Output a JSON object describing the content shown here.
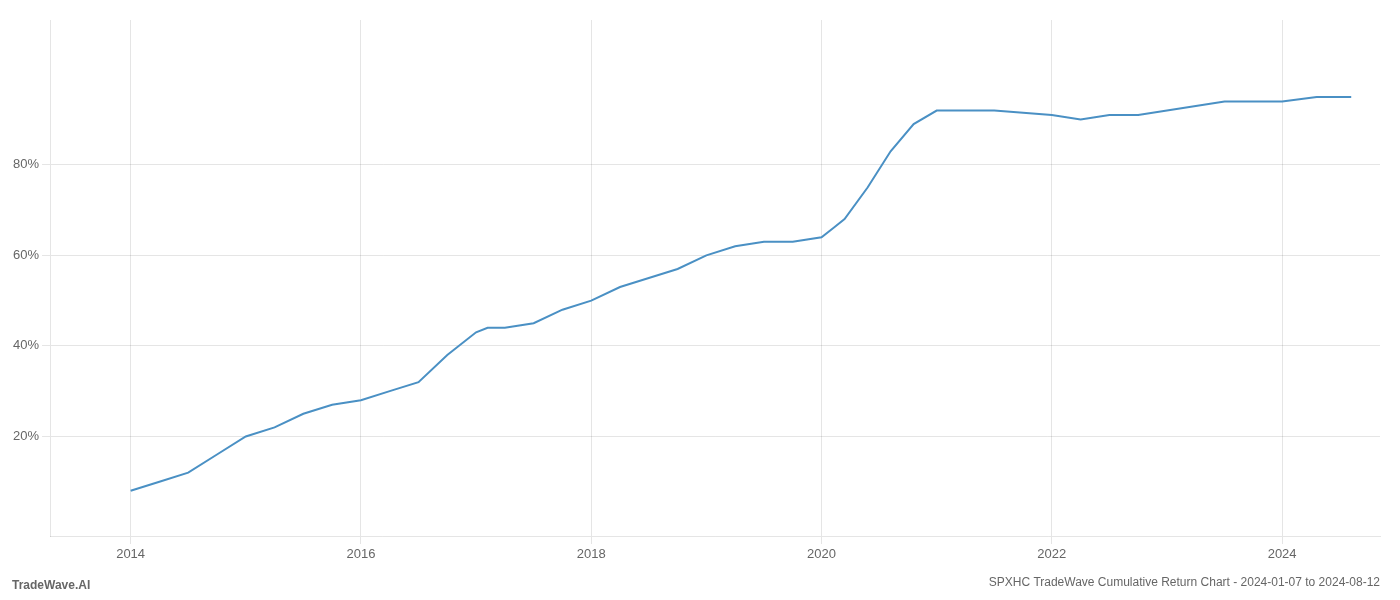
{
  "chart_data": {
    "type": "line",
    "title": "SPXHC TradeWave Cumulative Return Chart - 2024-01-07 to 2024-08-12",
    "annotations": [
      "TradeWave.AI"
    ],
    "x": [
      2014.0,
      2014.25,
      2014.5,
      2014.75,
      2015.0,
      2015.25,
      2015.5,
      2015.75,
      2016.0,
      2016.25,
      2016.5,
      2016.75,
      2017.0,
      2017.1,
      2017.25,
      2017.5,
      2017.75,
      2018.0,
      2018.25,
      2018.5,
      2018.75,
      2019.0,
      2019.25,
      2019.5,
      2019.75,
      2020.0,
      2020.1,
      2020.2,
      2020.4,
      2020.6,
      2020.8,
      2021.0,
      2021.2,
      2021.5,
      2022.0,
      2022.25,
      2022.5,
      2022.75,
      2023.0,
      2023.25,
      2023.5,
      2023.75,
      2024.0,
      2024.3,
      2024.6
    ],
    "values": [
      0.08,
      0.1,
      0.12,
      0.16,
      0.2,
      0.22,
      0.25,
      0.27,
      0.28,
      0.3,
      0.32,
      0.38,
      0.43,
      0.44,
      0.44,
      0.45,
      0.48,
      0.5,
      0.53,
      0.55,
      0.57,
      0.6,
      0.62,
      0.63,
      0.63,
      0.64,
      0.66,
      0.68,
      0.75,
      0.83,
      0.89,
      0.92,
      0.92,
      0.92,
      0.91,
      0.9,
      0.91,
      0.91,
      0.92,
      0.93,
      0.94,
      0.94,
      0.94,
      0.95,
      0.95
    ],
    "color": "#4a90c4",
    "xlim": [
      2013.3,
      2024.85
    ],
    "xticks": [
      2014,
      2016,
      2018,
      2020,
      2022,
      2024
    ],
    "ylim": [
      -0.02,
      1.12
    ],
    "yticks": [
      {
        "value": 0.2,
        "label": "20%"
      },
      {
        "value": 0.4,
        "label": "40%"
      },
      {
        "value": 0.6,
        "label": "60%"
      },
      {
        "value": 0.8,
        "label": "80%"
      }
    ],
    "grid": true
  }
}
